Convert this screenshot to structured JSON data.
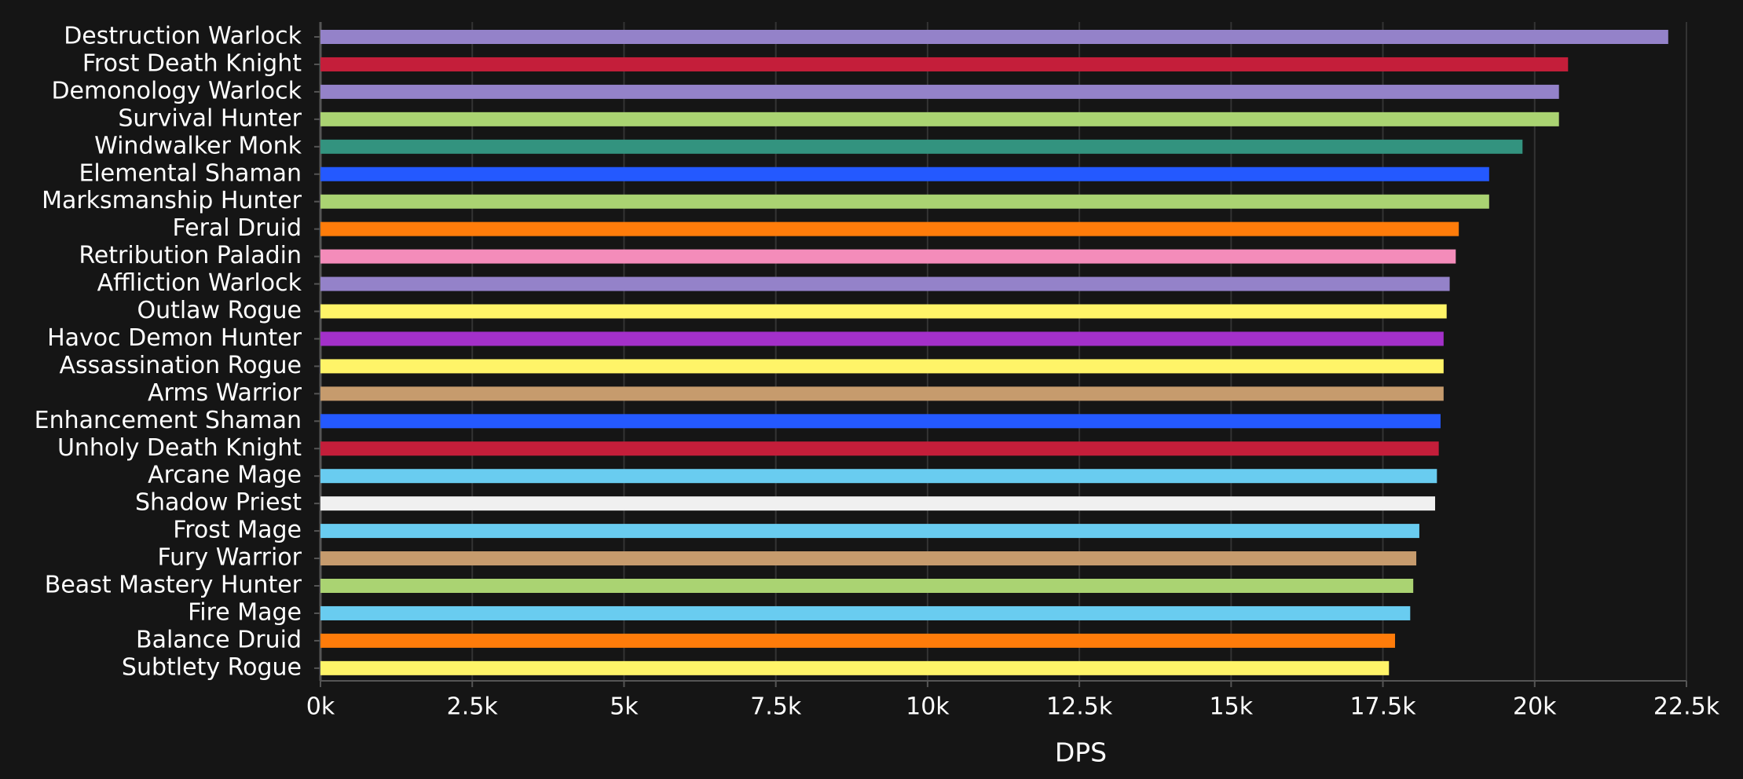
{
  "chart_data": {
    "type": "bar",
    "orientation": "horizontal",
    "x_label": "DPS",
    "categories": [
      "Destruction Warlock",
      "Frost Death Knight",
      "Demonology Warlock",
      "Survival Hunter",
      "Windwalker Monk",
      "Elemental Shaman",
      "Marksmanship Hunter",
      "Feral Druid",
      "Retribution Paladin",
      "Affliction Warlock",
      "Outlaw Rogue",
      "Havoc Demon Hunter",
      "Assassination Rogue",
      "Arms Warrior",
      "Enhancement Shaman",
      "Unholy Death Knight",
      "Arcane Mage",
      "Shadow Priest",
      "Frost Mage",
      "Fury Warrior",
      "Beast Mastery Hunter",
      "Fire Mage",
      "Balance Druid",
      "Subtlety Rogue"
    ],
    "values": [
      22200,
      20550,
      20400,
      20400,
      19800,
      19250,
      19250,
      18750,
      18700,
      18600,
      18550,
      18500,
      18500,
      18500,
      18450,
      18420,
      18390,
      18360,
      18100,
      18050,
      18000,
      17950,
      17700,
      17600
    ],
    "colors": [
      "#9482c9",
      "#c41e3a",
      "#9482c9",
      "#aad372",
      "#33937f",
      "#2459ff",
      "#aad372",
      "#ff7c0a",
      "#f48cba",
      "#9482c9",
      "#fff468",
      "#a330c9",
      "#fff468",
      "#c69b6d",
      "#2459ff",
      "#c41e3a",
      "#69ccf0",
      "#f0f0f0",
      "#69ccf0",
      "#c69b6d",
      "#aad372",
      "#69ccf0",
      "#ff7c0a",
      "#fff468"
    ],
    "xlim": [
      0,
      22500
    ],
    "xticks": [
      {
        "value": 0,
        "label": "0k"
      },
      {
        "value": 2500,
        "label": "2.5k"
      },
      {
        "value": 5000,
        "label": "5k"
      },
      {
        "value": 7500,
        "label": "7.5k"
      },
      {
        "value": 10000,
        "label": "10k"
      },
      {
        "value": 12500,
        "label": "12.5k"
      },
      {
        "value": 15000,
        "label": "15k"
      },
      {
        "value": 17500,
        "label": "17.5k"
      },
      {
        "value": 20000,
        "label": "20k"
      },
      {
        "value": 22500,
        "label": "22.5k"
      }
    ],
    "grid": true
  }
}
